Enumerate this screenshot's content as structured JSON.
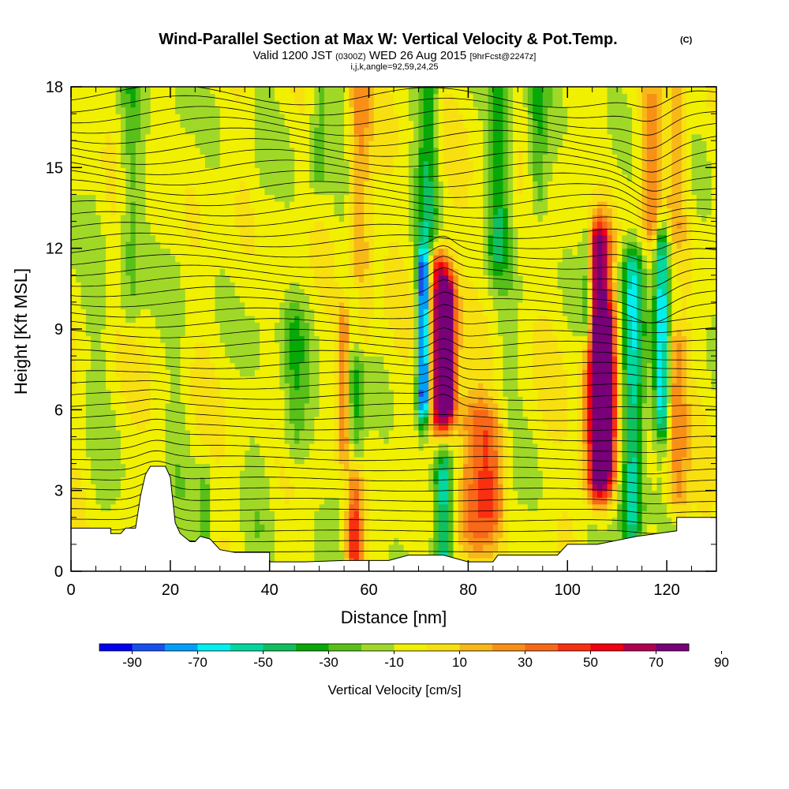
{
  "chart_data": {
    "type": "heatmap",
    "title": "Wind-Parallel Section at Max W: Vertical Velocity & Pot.Temp.",
    "title_mark": "(C)",
    "subtitle_parts": [
      "Valid 1200 JST",
      "(0300Z)",
      "WED 26 Aug 2015",
      "[9hrFcst@2247z]"
    ],
    "subtitle2": "i,j,k,angle=92,59,24,25",
    "xlabel": "Distance [nm]",
    "ylabel": "Height [Kft MSL]",
    "xlim": [
      0,
      130
    ],
    "ylim": [
      0,
      18
    ],
    "x_ticks": [
      "0",
      "20",
      "40",
      "60",
      "80",
      "100",
      "120"
    ],
    "y_ticks": [
      "0",
      "3",
      "6",
      "9",
      "12",
      "15",
      "18"
    ],
    "colorbar_labels": [
      "-90",
      "-70",
      "-50",
      "-30",
      "-10",
      "10",
      "30",
      "50",
      "70",
      "90"
    ],
    "colorbar_title": "Vertical Velocity [cm/s]",
    "colorbar_colors": [
      "#0000f0",
      "#1850f0",
      "#00a0f8",
      "#00f0f0",
      "#00d8a0",
      "#10c060",
      "#08a808",
      "#58c018",
      "#a0d828",
      "#f0f000",
      "#f8e010",
      "#f8b818",
      "#f89018",
      "#f86818",
      "#f83010",
      "#f00010",
      "#b00050",
      "#780078"
    ],
    "terrain_profile": [
      [
        0,
        1.6
      ],
      [
        8,
        1.6
      ],
      [
        8,
        1.4
      ],
      [
        10,
        1.4
      ],
      [
        11,
        1.6
      ],
      [
        13,
        1.6
      ],
      [
        14,
        2.8
      ],
      [
        15,
        3.6
      ],
      [
        16,
        3.9
      ],
      [
        19,
        3.9
      ],
      [
        20,
        3.5
      ],
      [
        21,
        1.8
      ],
      [
        22,
        1.4
      ],
      [
        24,
        1.1
      ],
      [
        25,
        1.1
      ],
      [
        26,
        1.3
      ],
      [
        28,
        1.2
      ],
      [
        30,
        0.8
      ],
      [
        33,
        0.7
      ],
      [
        40,
        0.7
      ],
      [
        40,
        0.35
      ],
      [
        47,
        0.35
      ],
      [
        55,
        0.4
      ],
      [
        64,
        0.4
      ],
      [
        68,
        0.6
      ],
      [
        72,
        0.6
      ],
      [
        75,
        0.6
      ],
      [
        80,
        0.35
      ],
      [
        85,
        0.35
      ],
      [
        86,
        0.6
      ],
      [
        98,
        0.6
      ],
      [
        100,
        1.0
      ],
      [
        106,
        1.0
      ],
      [
        114,
        1.3
      ],
      [
        122,
        1.5
      ],
      [
        122,
        2.0
      ],
      [
        130,
        2.0
      ]
    ],
    "updrafts": [
      {
        "x": 57,
        "ybot": 0.8,
        "ytop": 3.0,
        "amp": 60,
        "w": 1.2
      },
      {
        "x": 55,
        "ybot": 5.0,
        "ytop": 9.0,
        "amp": 45,
        "w": 1.0
      },
      {
        "x": 58,
        "ybot": 9.0,
        "ytop": 18.0,
        "amp": 30,
        "w": 1.6
      },
      {
        "x": 74,
        "ybot": 6.0,
        "ytop": 11.0,
        "amp": 70,
        "w": 1.4
      },
      {
        "x": 76,
        "ybot": 6.5,
        "ytop": 10.0,
        "amp": 80,
        "w": 1.2
      },
      {
        "x": 81,
        "ybot": 1.5,
        "ytop": 5.5,
        "amp": 35,
        "w": 2.5
      },
      {
        "x": 85,
        "ybot": 2.5,
        "ytop": 5.0,
        "amp": 30,
        "w": 2.0
      },
      {
        "x": 106,
        "ybot": 3.5,
        "ytop": 12.0,
        "amp": 90,
        "w": 1.8
      },
      {
        "x": 108,
        "ybot": 4.0,
        "ytop": 9.0,
        "amp": 50,
        "w": 1.5
      },
      {
        "x": 122,
        "ybot": 3.0,
        "ytop": 8.0,
        "amp": 35,
        "w": 1.5
      },
      {
        "x": 117,
        "ybot": 13.0,
        "ytop": 17.0,
        "amp": 30,
        "w": 1.5
      },
      {
        "x": 122,
        "ybot": 13.0,
        "ytop": 18.0,
        "amp": 25,
        "w": 1.5
      }
    ],
    "downdrafts": [
      {
        "x": 71,
        "ybot": 6.5,
        "ytop": 11.0,
        "amp": 90,
        "w": 0.8
      },
      {
        "x": 75,
        "ybot": 0.5,
        "ytop": 3.5,
        "amp": 55,
        "w": 1.3
      },
      {
        "x": 113,
        "ybot": 2.0,
        "ytop": 11.0,
        "amp": 55,
        "w": 1.6
      },
      {
        "x": 119,
        "ybot": 6.0,
        "ytop": 12.0,
        "amp": 60,
        "w": 1.0
      },
      {
        "x": 104,
        "ybot": 9.5,
        "ytop": 12.0,
        "amp": 45,
        "w": 1.0
      },
      {
        "x": 57,
        "ybot": 3.0,
        "ytop": 10.0,
        "amp": 30,
        "w": 1.5
      },
      {
        "x": 45,
        "ybot": 5.0,
        "ytop": 9.0,
        "amp": 22,
        "w": 2.0
      },
      {
        "x": 72,
        "ybot": 13.0,
        "ytop": 18.0,
        "amp": 28,
        "w": 1.5
      },
      {
        "x": 86,
        "ybot": 12.0,
        "ytop": 18.0,
        "amp": 28,
        "w": 1.5
      },
      {
        "x": 94,
        "ybot": 14.0,
        "ytop": 18.0,
        "amp": 25,
        "w": 1.5
      },
      {
        "x": 50,
        "ybot": 15.0,
        "ytop": 18.0,
        "amp": 22,
        "w": 1.5
      },
      {
        "x": 27,
        "ybot": 1.0,
        "ytop": 3.0,
        "amp": 20,
        "w": 1.0
      },
      {
        "x": 12,
        "ybot": 10.0,
        "ytop": 18.0,
        "amp": 18,
        "w": 1.5
      }
    ]
  }
}
